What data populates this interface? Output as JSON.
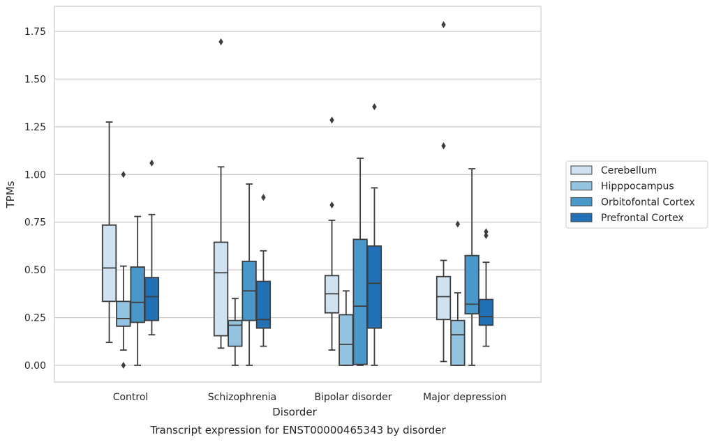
{
  "chart_data": {
    "type": "box",
    "xlabel": "Disorder",
    "ylabel": "TPMs",
    "caption": "Transcript expression for ENST00000465343 by disorder",
    "ylim": [
      -0.085,
      1.875
    ],
    "yticks": [
      "0.00",
      "0.25",
      "0.50",
      "0.75",
      "1.00",
      "1.25",
      "1.50",
      "1.75"
    ],
    "grid": "horizontal",
    "legend_position": "right",
    "categories": [
      "Control",
      "Schizophrenia",
      "Bipolar disorder",
      "Major depression"
    ],
    "series": [
      {
        "name": "Cerebellum",
        "color": "#d0e1f2",
        "boxes": [
          {
            "whisker_low": 0.12,
            "q1": 0.335,
            "median": 0.51,
            "q3": 0.735,
            "whisker_high": 1.275,
            "outliers": []
          },
          {
            "whisker_low": 0.09,
            "q1": 0.155,
            "median": 0.485,
            "q3": 0.645,
            "whisker_high": 1.04,
            "outliers": [
              1.695
            ]
          },
          {
            "whisker_low": 0.08,
            "q1": 0.275,
            "median": 0.375,
            "q3": 0.47,
            "whisker_high": 0.76,
            "outliers": [
              0.84,
              1.285
            ]
          },
          {
            "whisker_low": 0.02,
            "q1": 0.24,
            "median": 0.36,
            "q3": 0.465,
            "whisker_high": 0.55,
            "outliers": [
              1.15,
              1.785
            ]
          }
        ]
      },
      {
        "name": "Hipppocampus",
        "color": "#94c4df",
        "boxes": [
          {
            "whisker_low": 0.08,
            "q1": 0.205,
            "median": 0.245,
            "q3": 0.335,
            "whisker_high": 0.52,
            "outliers": [
              0.0,
              1.0
            ]
          },
          {
            "whisker_low": 0.0,
            "q1": 0.1,
            "median": 0.21,
            "q3": 0.235,
            "whisker_high": 0.35,
            "outliers": []
          },
          {
            "whisker_low": 0.0,
            "q1": 0.0,
            "median": 0.11,
            "q3": 0.265,
            "whisker_high": 0.39,
            "outliers": []
          },
          {
            "whisker_low": 0.0,
            "q1": 0.0,
            "median": 0.16,
            "q3": 0.235,
            "whisker_high": 0.38,
            "outliers": [
              0.74
            ]
          }
        ]
      },
      {
        "name": "Orbitofontal Cortex",
        "color": "#4a98c9",
        "boxes": [
          {
            "whisker_low": 0.0,
            "q1": 0.225,
            "median": 0.33,
            "q3": 0.515,
            "whisker_high": 0.78,
            "outliers": []
          },
          {
            "whisker_low": 0.0,
            "q1": 0.235,
            "median": 0.39,
            "q3": 0.545,
            "whisker_high": 0.95,
            "outliers": []
          },
          {
            "whisker_low": 0.0,
            "q1": 0.005,
            "median": 0.31,
            "q3": 0.66,
            "whisker_high": 1.085,
            "outliers": []
          },
          {
            "whisker_low": 0.0,
            "q1": 0.27,
            "median": 0.32,
            "q3": 0.575,
            "whisker_high": 1.03,
            "outliers": []
          }
        ]
      },
      {
        "name": "Prefrontal Cortex",
        "color": "#2270b5",
        "boxes": [
          {
            "whisker_low": 0.16,
            "q1": 0.235,
            "median": 0.36,
            "q3": 0.46,
            "whisker_high": 0.79,
            "outliers": [
              1.06
            ]
          },
          {
            "whisker_low": 0.1,
            "q1": 0.195,
            "median": 0.24,
            "q3": 0.44,
            "whisker_high": 0.6,
            "outliers": [
              0.88
            ]
          },
          {
            "whisker_low": 0.0,
            "q1": 0.195,
            "median": 0.43,
            "q3": 0.625,
            "whisker_high": 0.93,
            "outliers": [
              1.355
            ]
          },
          {
            "whisker_low": 0.1,
            "q1": 0.21,
            "median": 0.255,
            "q3": 0.345,
            "whisker_high": 0.54,
            "outliers": [
              0.68,
              0.7
            ]
          }
        ]
      }
    ]
  }
}
